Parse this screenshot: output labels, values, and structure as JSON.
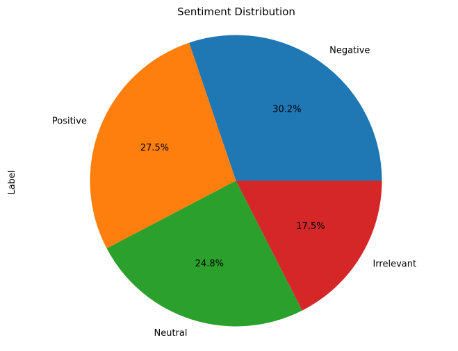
{
  "chart_data": {
    "type": "pie",
    "title": "Sentiment Distribution",
    "ylabel": "Label",
    "categories": [
      "Negative",
      "Positive",
      "Neutral",
      "Irrelevant"
    ],
    "values": [
      30.2,
      27.5,
      24.8,
      17.5
    ],
    "value_labels": [
      "30.2%",
      "27.5%",
      "24.8%",
      "17.5%"
    ],
    "colors": [
      "#1f77b4",
      "#ff7f0e",
      "#2ca02c",
      "#d62728"
    ],
    "start_angle_deg": 0,
    "direction": "counterclockwise"
  }
}
